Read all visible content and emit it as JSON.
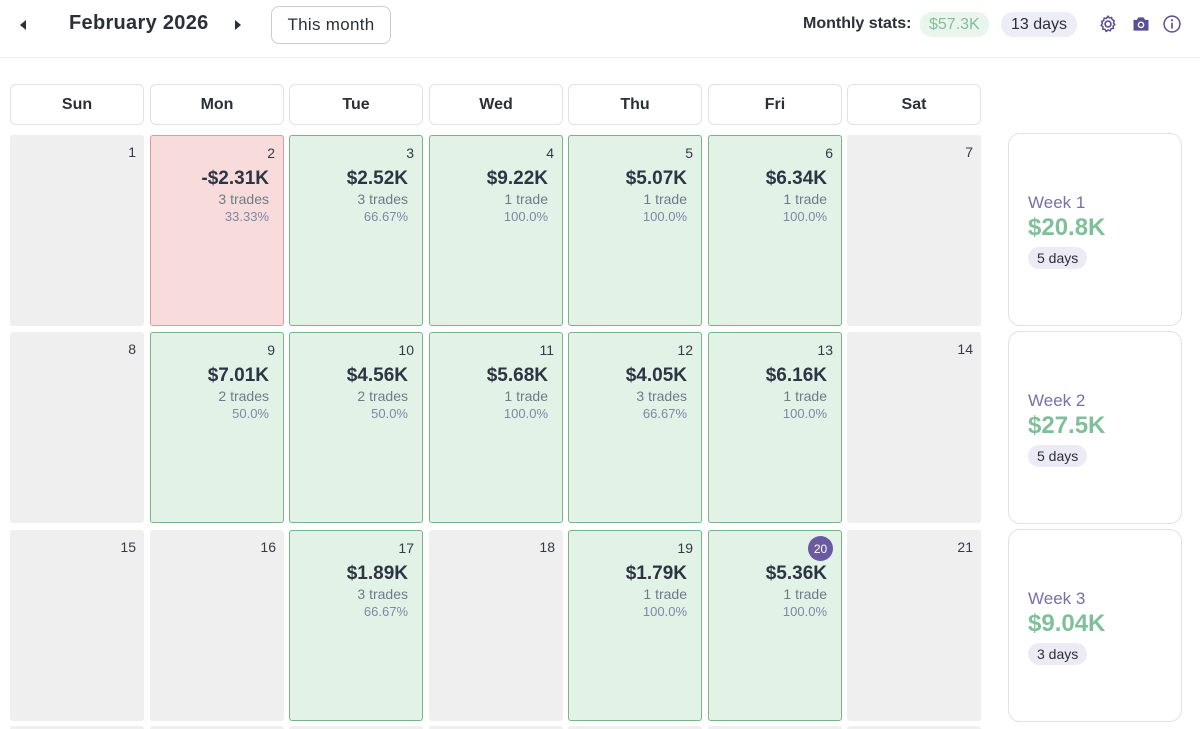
{
  "header": {
    "month_title": "February 2026",
    "this_month_label": "This month",
    "stats_label": "Monthly stats:",
    "stats_pnl": "$57.3K",
    "stats_days": "13 days",
    "icons": [
      "prev-arrow-icon",
      "next-arrow-icon",
      "gear-icon",
      "camera-icon",
      "info-icon"
    ]
  },
  "weekdays": [
    "Sun",
    "Mon",
    "Tue",
    "Wed",
    "Thu",
    "Fri",
    "Sat"
  ],
  "colors": {
    "profit_bg": "#e3f2e6",
    "profit_border": "#77b589",
    "loss_bg": "#f8dcdc",
    "loss_border": "#de9a9d",
    "empty_bg": "#efefef",
    "accent_purple": "#6a5aa2",
    "profit_text": "#7fc09a"
  },
  "weeks": [
    {
      "days": [
        {
          "day": "1",
          "status": "empty"
        },
        {
          "day": "2",
          "status": "loss",
          "pnl": "-$2.31K",
          "trades": "3 trades",
          "winrate": "33.33%"
        },
        {
          "day": "3",
          "status": "profit",
          "pnl": "$2.52K",
          "trades": "3 trades",
          "winrate": "66.67%"
        },
        {
          "day": "4",
          "status": "profit",
          "pnl": "$9.22K",
          "trades": "1 trade",
          "winrate": "100.0%"
        },
        {
          "day": "5",
          "status": "profit",
          "pnl": "$5.07K",
          "trades": "1 trade",
          "winrate": "100.0%"
        },
        {
          "day": "6",
          "status": "profit",
          "pnl": "$6.34K",
          "trades": "1 trade",
          "winrate": "100.0%"
        },
        {
          "day": "7",
          "status": "empty"
        }
      ],
      "summary": {
        "label": "Week 1",
        "pnl": "$20.8K",
        "days": "5 days"
      }
    },
    {
      "days": [
        {
          "day": "8",
          "status": "empty"
        },
        {
          "day": "9",
          "status": "profit",
          "pnl": "$7.01K",
          "trades": "2 trades",
          "winrate": "50.0%"
        },
        {
          "day": "10",
          "status": "profit",
          "pnl": "$4.56K",
          "trades": "2 trades",
          "winrate": "50.0%"
        },
        {
          "day": "11",
          "status": "profit",
          "pnl": "$5.68K",
          "trades": "1 trade",
          "winrate": "100.0%"
        },
        {
          "day": "12",
          "status": "profit",
          "pnl": "$4.05K",
          "trades": "3 trades",
          "winrate": "66.67%"
        },
        {
          "day": "13",
          "status": "profit",
          "pnl": "$6.16K",
          "trades": "1 trade",
          "winrate": "100.0%"
        },
        {
          "day": "14",
          "status": "empty"
        }
      ],
      "summary": {
        "label": "Week 2",
        "pnl": "$27.5K",
        "days": "5 days"
      }
    },
    {
      "days": [
        {
          "day": "15",
          "status": "empty"
        },
        {
          "day": "16",
          "status": "empty"
        },
        {
          "day": "17",
          "status": "profit",
          "pnl": "$1.89K",
          "trades": "3 trades",
          "winrate": "66.67%"
        },
        {
          "day": "18",
          "status": "empty"
        },
        {
          "day": "19",
          "status": "profit",
          "pnl": "$1.79K",
          "trades": "1 trade",
          "winrate": "100.0%"
        },
        {
          "day": "20",
          "status": "profit",
          "pnl": "$5.36K",
          "trades": "1 trade",
          "winrate": "100.0%",
          "today": true
        },
        {
          "day": "21",
          "status": "empty"
        }
      ],
      "summary": {
        "label": "Week 3",
        "pnl": "$9.04K",
        "days": "3 days"
      }
    }
  ]
}
